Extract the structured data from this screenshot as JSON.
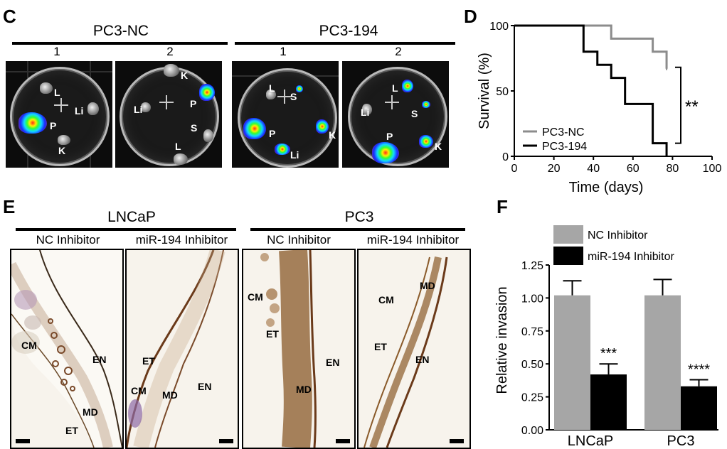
{
  "panels": {
    "C": {
      "letter": "C",
      "groups": [
        {
          "title": "PC3-NC",
          "dishes": [
            "1",
            "2"
          ]
        },
        {
          "title": "PC3-194",
          "dishes": [
            "1",
            "2"
          ]
        }
      ],
      "organ_labels": {
        "nc1": [
          "L",
          "Li",
          "P",
          "K"
        ],
        "nc2": [
          "K",
          "P",
          "Li",
          "S",
          "L"
        ],
        "g1": [
          "L",
          "S",
          "P",
          "K",
          "Li"
        ],
        "g2": [
          "L",
          "Li",
          "S",
          "P",
          "K"
        ]
      }
    },
    "D": {
      "letter": "D",
      "significance": "**"
    },
    "E": {
      "letter": "E",
      "groups": [
        {
          "title": "LNCaP",
          "subs": [
            "NC Inhibitor",
            "miR-194 Inhibitor"
          ]
        },
        {
          "title": "PC3",
          "subs": [
            "NC Inhibitor",
            "miR-194 Inhibitor"
          ]
        }
      ],
      "tissue_labels": {
        "a": [
          "CM",
          "EN",
          "MD",
          "ET"
        ],
        "b": [
          "ET",
          "CM",
          "MD",
          "EN"
        ],
        "c": [
          "CM",
          "ET",
          "EN",
          "MD"
        ],
        "d": [
          "CM",
          "MD",
          "ET",
          "EN"
        ]
      }
    },
    "F": {
      "letter": "F"
    }
  },
  "chart_data": [
    {
      "type": "line",
      "panel": "D",
      "xlabel": "Time (days)",
      "ylabel": "Survival (%)",
      "xlim": [
        0,
        100
      ],
      "ylim": [
        0,
        100
      ],
      "xticks": [
        "0",
        "20",
        "40",
        "60",
        "80",
        "100"
      ],
      "yticks": [
        "0",
        "50",
        "100"
      ],
      "legend_position": "bottom-left",
      "series": [
        {
          "name": "PC3-NC",
          "color": "#8c8c8c",
          "step": true,
          "x": [
            0,
            49,
            70,
            77
          ],
          "y": [
            100,
            90,
            80,
            67
          ]
        },
        {
          "name": "PC3-194",
          "color": "#000000",
          "step": true,
          "x": [
            0,
            35,
            42,
            49,
            56,
            70,
            77
          ],
          "y": [
            100,
            80,
            70,
            60,
            40,
            10,
            0
          ]
        }
      ],
      "annotations": [
        "**"
      ]
    },
    {
      "type": "bar",
      "panel": "F",
      "ylabel": "Relative invasion",
      "categories": [
        "LNCaP",
        "PC3"
      ],
      "ylim": [
        0,
        1.25
      ],
      "yticks": [
        "0.00",
        "0.25",
        "0.50",
        "0.75",
        "1.00",
        "1.25"
      ],
      "legend_position": "top",
      "series": [
        {
          "name": "NC Inhibitor",
          "color": "#a6a6a6",
          "values": [
            1.02,
            1.02
          ],
          "errors": [
            0.11,
            0.12
          ]
        },
        {
          "name": "miR-194 Inhibitor",
          "color": "#000000",
          "values": [
            0.42,
            0.33
          ],
          "errors": [
            0.08,
            0.05
          ]
        }
      ],
      "annotations": [
        "***",
        "****"
      ]
    }
  ]
}
